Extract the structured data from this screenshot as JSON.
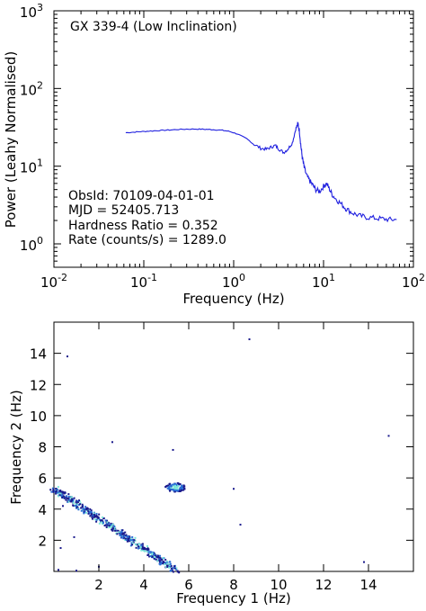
{
  "chart_data": [
    {
      "type": "line",
      "title": "GX 339-4 (Low Inclination)",
      "xlabel": "Frequency (Hz)",
      "ylabel": "Power (Leahy Normalised)",
      "xscale": "log",
      "yscale": "log",
      "xlim": [
        0.01,
        100
      ],
      "ylim": [
        0.5,
        1000
      ],
      "x_ticks": [
        {
          "value": 0.01,
          "base": "10",
          "exp": "-2"
        },
        {
          "value": 0.1,
          "base": "10",
          "exp": "-1"
        },
        {
          "value": 1,
          "base": "10",
          "exp": "0"
        },
        {
          "value": 10,
          "base": "10",
          "exp": "1"
        },
        {
          "value": 100,
          "base": "10",
          "exp": "2"
        }
      ],
      "y_ticks": [
        {
          "value": 1,
          "base": "10",
          "exp": "0"
        },
        {
          "value": 10,
          "base": "10",
          "exp": "1"
        },
        {
          "value": 100,
          "base": "10",
          "exp": "2"
        },
        {
          "value": 1000,
          "base": "10",
          "exp": "3"
        }
      ],
      "annotations": [
        "ObsId: 70109-04-01-01",
        "MJD = 52405.713",
        "Hardness Ratio = 0.352",
        "Rate (counts/s) = 1289.0"
      ],
      "grid": false,
      "line_color": "#1f1fdf",
      "series": [
        {
          "x": [
            0.063,
            0.08,
            0.1,
            0.13,
            0.17,
            0.22,
            0.3,
            0.4,
            0.5,
            0.6,
            0.75,
            0.9,
            1.1,
            1.4,
            1.7,
            2.0,
            2.3,
            2.6,
            2.9,
            3.2,
            3.6,
            4.0,
            4.5,
            4.9,
            5.2,
            5.4,
            5.6,
            5.8,
            6.1,
            6.5,
            7.0,
            7.5,
            8.2,
            9.0,
            10.0,
            10.8,
            11.5,
            12.5,
            14,
            16,
            18,
            21,
            25,
            30,
            37,
            45,
            55,
            65
          ],
          "y": [
            27,
            27.5,
            28,
            28.5,
            29,
            29.5,
            30,
            30,
            29.8,
            29.5,
            29,
            28,
            26,
            22.5,
            19,
            17,
            16.5,
            17.5,
            18.5,
            16.5,
            15,
            16.5,
            20,
            30,
            35,
            28,
            18,
            13,
            9.5,
            7.5,
            6.5,
            5.8,
            5,
            4.7,
            5.5,
            6,
            5.2,
            4.3,
            3.7,
            3.2,
            2.8,
            2.5,
            2.3,
            2.2,
            2.15,
            2.1,
            2.05,
            2.05
          ]
        }
      ]
    },
    {
      "type": "heatmap",
      "xlabel": "Frequency 1 (Hz)",
      "ylabel": "Frequency 2 (Hz)",
      "xlim": [
        0,
        16
      ],
      "ylim": [
        0,
        16
      ],
      "x_ticks": [
        "2",
        "4",
        "6",
        "8",
        "10",
        "12",
        "14"
      ],
      "y_ticks": [
        "2",
        "4",
        "6",
        "8",
        "10",
        "12",
        "14"
      ],
      "diagonal_band": {
        "from": [
          0.0,
          5.3
        ],
        "to": [
          5.4,
          0.1
        ]
      },
      "hotspot": {
        "x": 5.4,
        "y": 5.4
      },
      "isolated_points": [
        [
          0.6,
          13.8
        ],
        [
          2.6,
          8.3
        ],
        [
          5.3,
          7.8
        ],
        [
          8.7,
          14.9
        ],
        [
          8.0,
          5.3
        ],
        [
          14.9,
          8.7
        ],
        [
          0.4,
          4.2
        ],
        [
          0.9,
          2.2
        ],
        [
          0.3,
          1.5
        ],
        [
          8.3,
          3.0
        ],
        [
          0.2,
          0.1
        ],
        [
          1.0,
          0.05
        ],
        [
          2.0,
          0.3
        ],
        [
          13.8,
          0.6
        ]
      ],
      "colors": {
        "low": "#1a1a8c",
        "mid": "#2a6fd6",
        "high": "#7ee8d8"
      }
    }
  ]
}
